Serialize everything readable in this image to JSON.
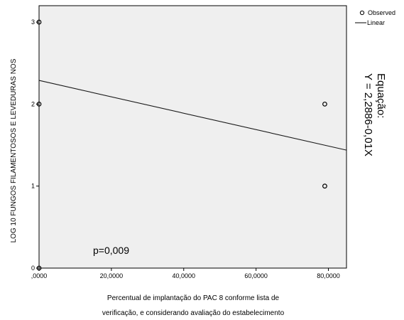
{
  "chart_data": {
    "type": "scatter",
    "xlabel_line1": "Percentual de implantação do PAC 8 conforme lista de",
    "xlabel_line2": "verificação, e considerando avaliação do estabelecimento",
    "ylabel": "LOG 10 FUNGOS FILAMENTOSOS E LEVEDURAS NOS",
    "xlim": [
      0,
      85
    ],
    "ylim": [
      0,
      3.2
    ],
    "x_ticks": [
      0,
      20,
      40,
      60,
      80
    ],
    "x_tick_labels": [
      ",0000",
      "20,0000",
      "40,0000",
      "60,0000",
      "80,0000"
    ],
    "y_ticks": [
      0,
      1,
      2,
      3
    ],
    "y_tick_labels": [
      "0",
      "1",
      "2",
      "3"
    ],
    "grid": false,
    "background": "#efefef",
    "legend_position": "top-right, outside plot",
    "series": [
      {
        "name": "Observed",
        "kind": "points",
        "marker": "open-circle",
        "points": [
          {
            "x": 0,
            "y": 3
          },
          {
            "x": 0,
            "y": 2
          },
          {
            "x": 0,
            "y": 0
          },
          {
            "x": 79,
            "y": 2
          },
          {
            "x": 79,
            "y": 1
          }
        ]
      },
      {
        "name": "Linear",
        "kind": "line",
        "intercept": 2.2886,
        "slope": -0.01
      }
    ],
    "annotations": {
      "p_value": "p=0,009",
      "equation_line1": "Equação:",
      "equation_line2": "Y = 2,2886-0,01X"
    }
  }
}
